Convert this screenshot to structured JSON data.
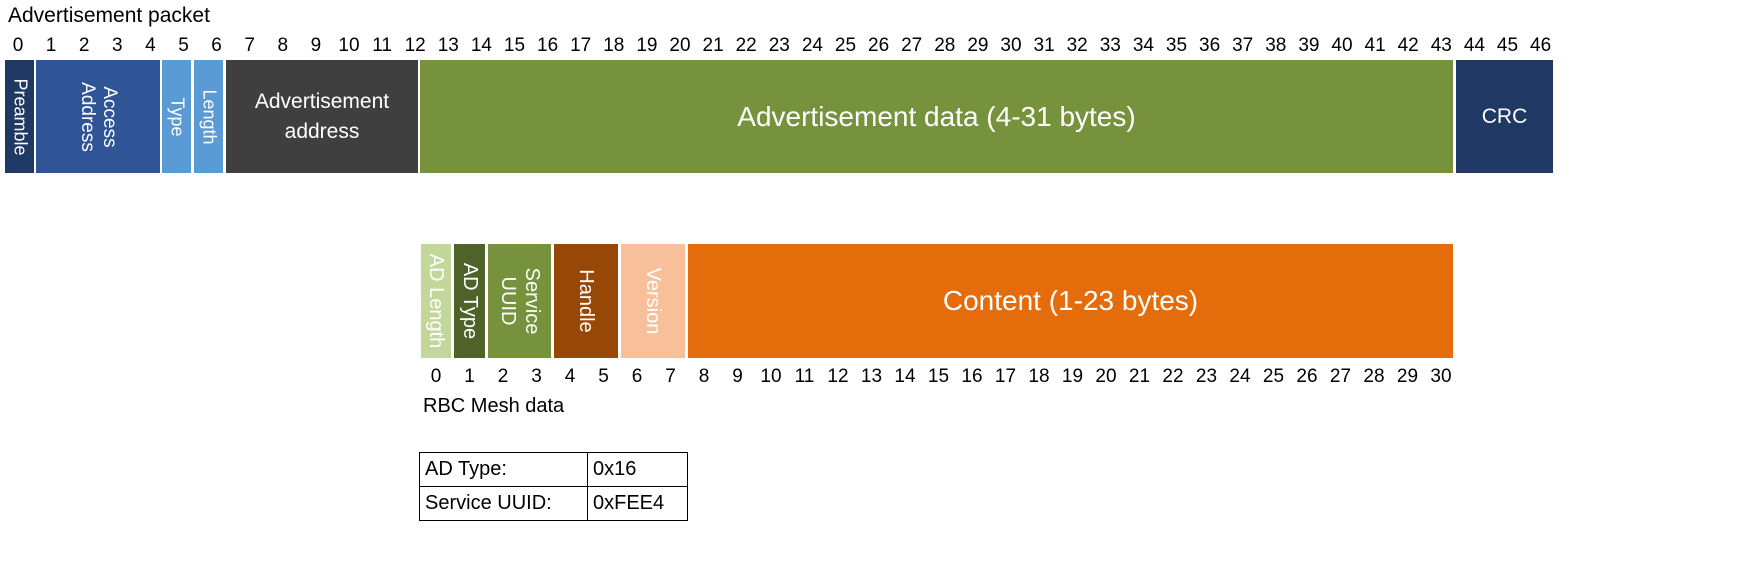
{
  "packet": {
    "title": "Advertisement packet",
    "byte_numbers": [
      "0",
      "1",
      "2",
      "3",
      "4",
      "5",
      "6",
      "7",
      "8",
      "9",
      "10",
      "11",
      "12",
      "13",
      "14",
      "15",
      "16",
      "17",
      "18",
      "19",
      "20",
      "21",
      "22",
      "23",
      "24",
      "25",
      "26",
      "27",
      "28",
      "29",
      "30",
      "31",
      "32",
      "33",
      "34",
      "35",
      "36",
      "37",
      "38",
      "39",
      "40",
      "41",
      "42",
      "43",
      "44",
      "45",
      "46"
    ],
    "fields": {
      "preamble": {
        "label": "Preamble",
        "color": "#1f3864"
      },
      "access_address": {
        "label_line1": "Access",
        "label_line2": "Address",
        "color": "#2f5597"
      },
      "type": {
        "label": "Type",
        "color": "#5b9bd5"
      },
      "length": {
        "label": "Length",
        "color": "#5b9bd5"
      },
      "adv_address": {
        "label_line1": "Advertisement",
        "label_line2": "address",
        "color": "#3f3f3f"
      },
      "adv_data": {
        "label": "Advertisement data (4-31 bytes)",
        "color": "#76923c"
      },
      "crc": {
        "label": "CRC",
        "color": "#1f3864"
      }
    }
  },
  "mesh": {
    "title": "RBC Mesh data",
    "byte_numbers": [
      "0",
      "1",
      "2",
      "3",
      "4",
      "5",
      "6",
      "7",
      "8",
      "9",
      "10",
      "11",
      "12",
      "13",
      "14",
      "15",
      "16",
      "17",
      "18",
      "19",
      "20",
      "21",
      "22",
      "23",
      "24",
      "25",
      "26",
      "27",
      "28",
      "29",
      "30"
    ],
    "fields": {
      "ad_length": {
        "label": "AD Length",
        "color": "#c4d79b"
      },
      "ad_type": {
        "label": "AD Type",
        "color": "#4f6228"
      },
      "service_uuid": {
        "label_line1": "Service",
        "label_line2": "UUID",
        "color": "#76923c"
      },
      "handle": {
        "label": "Handle",
        "color": "#974706"
      },
      "version": {
        "label": "Version",
        "color": "#f8c09a"
      },
      "content": {
        "label": "Content (1-23 bytes)",
        "color": "#e46c0a"
      }
    }
  },
  "info_table": {
    "rows": [
      {
        "key": "AD Type:",
        "value": "0x16"
      },
      {
        "key": "Service UUID:",
        "value": "0xFEE4"
      }
    ]
  }
}
